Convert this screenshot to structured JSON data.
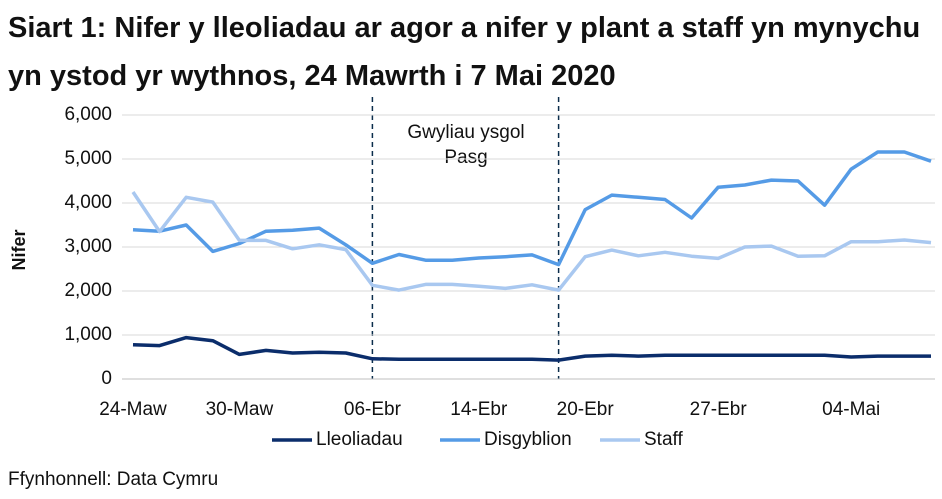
{
  "chart_data": {
    "type": "line",
    "title": "Siart 1: Nifer y lleoliadau ar agor a nifer y plant a staff yn mynychu yn ystod yr wythnos, 24 Mawrth i 7 Mai 2020",
    "ylabel": "Nifer",
    "annotation": [
      "Gwyliau ysgol",
      "Pasg"
    ],
    "source": "Ffynhonnell: Data Cymru",
    "categories": [
      "24-Maw",
      null,
      null,
      null,
      "30-Maw",
      null,
      null,
      null,
      null,
      "06-Ebr",
      null,
      null,
      null,
      "14-Ebr",
      null,
      null,
      null,
      "20-Ebr",
      null,
      null,
      null,
      null,
      "27-Ebr",
      null,
      null,
      null,
      null,
      "04-Mai",
      null,
      null,
      null
    ],
    "series": [
      {
        "name": "Lleoliadau",
        "color": "#0b2d6b",
        "values": [
          780,
          760,
          940,
          870,
          560,
          650,
          590,
          610,
          590,
          460,
          450,
          450,
          450,
          450,
          450,
          450,
          430,
          520,
          540,
          520,
          540,
          540,
          540,
          540,
          540,
          540,
          540,
          500,
          520,
          520,
          520
        ]
      },
      {
        "name": "Disgyblion",
        "color": "#559be6",
        "values": [
          3390,
          3360,
          3500,
          2900,
          3080,
          3360,
          3380,
          3430,
          3050,
          2630,
          2830,
          2700,
          2700,
          2750,
          2780,
          2820,
          2600,
          3850,
          4180,
          4130,
          4080,
          3660,
          4360,
          4410,
          4520,
          4500,
          3950,
          4770,
          5160,
          5160,
          4950
        ]
      },
      {
        "name": "Staff",
        "color": "#a9c8f0",
        "values": [
          4250,
          3350,
          4130,
          4020,
          3150,
          3150,
          2960,
          3050,
          2940,
          2130,
          2020,
          2150,
          2150,
          2110,
          2060,
          2140,
          2020,
          2780,
          2930,
          2800,
          2880,
          2790,
          2740,
          3000,
          3020,
          2790,
          2800,
          3120,
          3120,
          3160,
          3100
        ]
      }
    ],
    "ylim": [
      0,
      6000
    ],
    "yticks": [
      0,
      {
        "value": 1000,
        "label": "1,000"
      },
      {
        "value": 2000,
        "label": "2,000"
      },
      {
        "value": 3000,
        "label": "3,000"
      },
      {
        "value": 4000,
        "label": "4,000"
      },
      {
        "value": 5000,
        "label": "5,000"
      },
      {
        "value": 6000,
        "label": "6,000"
      }
    ],
    "grid": true
  }
}
